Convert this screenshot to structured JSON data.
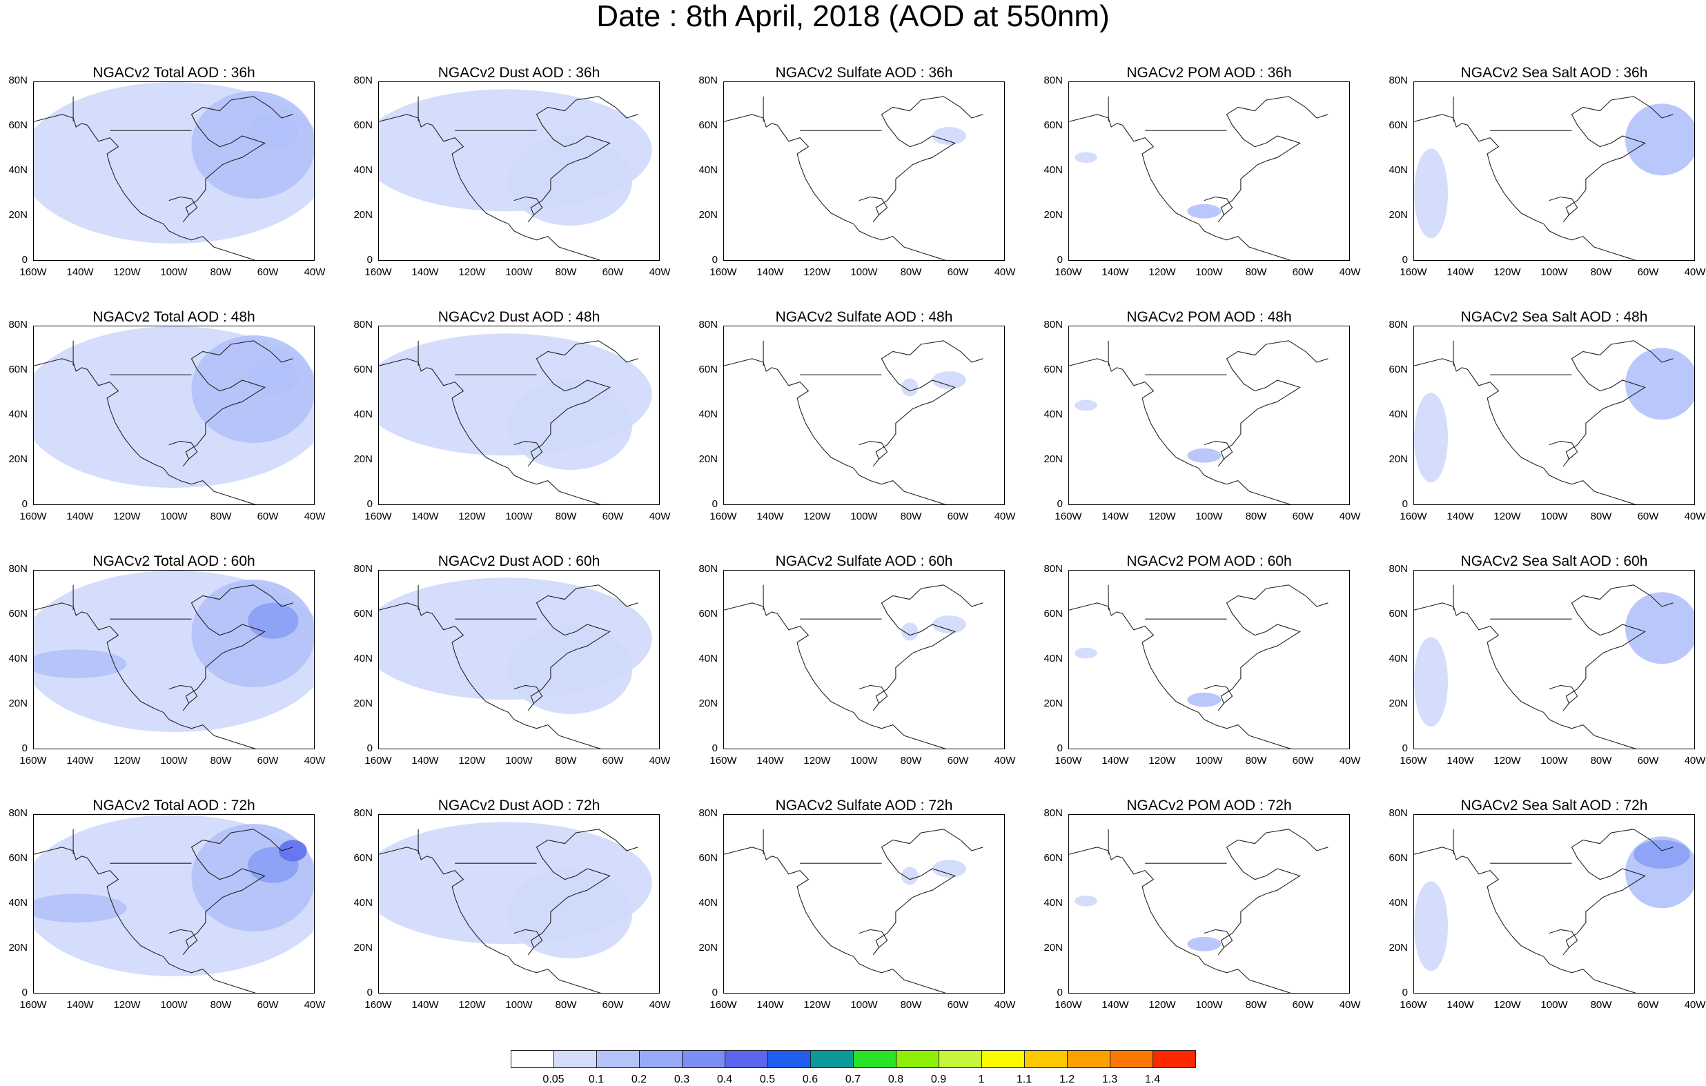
{
  "title": "Date : 8th April, 2018 (AOD at 550nm)",
  "rows": [
    [
      "NGACv2 Total AOD : 36h",
      "NGACv2 Dust AOD : 36h",
      "NGACv2 Sulfate AOD : 36h",
      "NGACv2 POM AOD : 36h",
      "NGACv2 Sea Salt AOD : 36h"
    ],
    [
      "NGACv2 Total AOD : 48h",
      "NGACv2 Dust AOD : 48h",
      "NGACv2 Sulfate AOD : 48h",
      "NGACv2 POM AOD : 48h",
      "NGACv2 Sea Salt AOD : 48h"
    ],
    [
      "NGACv2 Total AOD : 60h",
      "NGACv2 Dust AOD : 60h",
      "NGACv2 Sulfate AOD : 60h",
      "NGACv2 POM AOD : 60h",
      "NGACv2 Sea Salt AOD : 60h"
    ],
    [
      "NGACv2 Total AOD : 72h",
      "NGACv2 Dust AOD : 72h",
      "NGACv2 Sulfate AOD : 72h",
      "NGACv2 POM AOD : 72h",
      "NGACv2 Sea Salt  AOD : 72h"
    ]
  ],
  "lat_ticks": [
    "80N",
    "60N",
    "40N",
    "20N",
    "0"
  ],
  "lon_ticks": [
    "160W",
    "140W",
    "120W",
    "100W",
    "80W",
    "60W",
    "40W"
  ],
  "colorbar": {
    "labels": [
      "0.05",
      "0.1",
      "0.2",
      "0.3",
      "0.4",
      "0.5",
      "0.6",
      "0.7",
      "0.8",
      "0.9",
      "1",
      "1.1",
      "1.2",
      "1.3",
      "1.4"
    ],
    "colors": [
      "#ffffff",
      "#d4dcfc",
      "#b4c3fa",
      "#96aaf8",
      "#7a8ef5",
      "#5a66ee",
      "#1f5ff0",
      "#0b9a9a",
      "#27e427",
      "#8ef00a",
      "#c8f53c",
      "#fbfb00",
      "#fcc800",
      "#fca000",
      "#fc7800",
      "#fc2800"
    ]
  },
  "field_colors": {
    "light": "#cfd9fb",
    "mid": "#b2c1f9",
    "strong": "#8aa0f5",
    "peak": "#5f70ee"
  }
}
